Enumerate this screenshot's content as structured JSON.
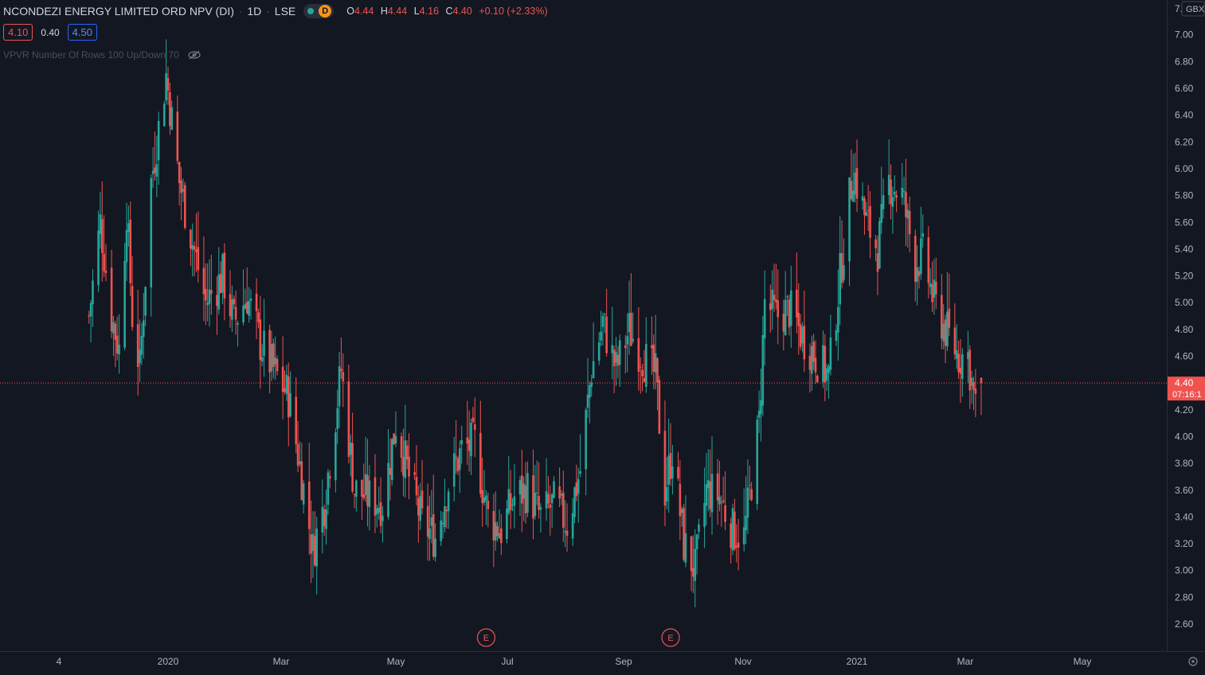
{
  "header": {
    "symbol": "NCONDEZI ENERGY LIMITED ORD NPV (DI)",
    "interval": "1D",
    "exchange": "LSE",
    "badge": "D",
    "ohlc": {
      "o_label": "O",
      "o": "4.44",
      "h_label": "H",
      "h": "4.44",
      "l_label": "L",
      "l": "4.16",
      "c_label": "C",
      "c": "4.40",
      "change": "+0.10 (+2.33%)"
    },
    "bid": "4.10",
    "spread": "0.40",
    "ask": "4.50",
    "indicator": "VPVR Number Of Rows 100 Up/Down 70"
  },
  "price_axis": {
    "currency": "GBX",
    "top_label": "7.",
    "ticks": [
      "7.00",
      "6.80",
      "6.60",
      "6.40",
      "6.20",
      "6.00",
      "5.80",
      "5.60",
      "5.40",
      "5.20",
      "5.00",
      "4.80",
      "4.60",
      "4.40",
      "4.20",
      "4.00",
      "3.80",
      "3.60",
      "3.40",
      "3.20",
      "3.00",
      "2.80",
      "2.60"
    ],
    "last_price_label": "4.40",
    "countdown": "07:16:1"
  },
  "time_axis": {
    "labels": [
      "4",
      "2020",
      "Mar",
      "May",
      "Jul",
      "Sep",
      "Nov",
      "2021",
      "Mar",
      "May"
    ]
  },
  "events": [
    {
      "label": "E",
      "date": "2020-06-18"
    },
    {
      "label": "E",
      "date": "2020-09-24"
    }
  ],
  "colors": {
    "background": "#131722",
    "up": "#26a69a",
    "down": "#ef5350",
    "axis_text": "#b2b5be",
    "last_price": "#ef5350"
  },
  "chart_data": {
    "type": "candlestick",
    "symbol": "NCONDEZI ENERGY LIMITED ORD NPV (DI)",
    "interval": "1D",
    "currency": "GBX",
    "y_range": [
      2.52,
      7.08
    ],
    "last_price": 4.4,
    "series": [
      {
        "date": "2019-11-20",
        "price": 4.9
      },
      {
        "date": "2019-11-26",
        "price": 5.6
      },
      {
        "date": "2019-12-02",
        "price": 4.9
      },
      {
        "date": "2019-12-06",
        "price": 4.65
      },
      {
        "date": "2019-12-10",
        "price": 5.7
      },
      {
        "date": "2019-12-13",
        "price": 4.9
      },
      {
        "date": "2019-12-17",
        "price": 4.5
      },
      {
        "date": "2019-12-23",
        "price": 5.9
      },
      {
        "date": "2019-12-31",
        "price": 6.7
      },
      {
        "date": "2020-01-07",
        "price": 5.9
      },
      {
        "date": "2020-01-14",
        "price": 5.45
      },
      {
        "date": "2020-01-21",
        "price": 5.0
      },
      {
        "date": "2020-01-30",
        "price": 5.2
      },
      {
        "date": "2020-02-05",
        "price": 4.85
      },
      {
        "date": "2020-02-12",
        "price": 5.05
      },
      {
        "date": "2020-02-19",
        "price": 4.7
      },
      {
        "date": "2020-02-26",
        "price": 4.5
      },
      {
        "date": "2020-03-05",
        "price": 4.3
      },
      {
        "date": "2020-03-12",
        "price": 3.7
      },
      {
        "date": "2020-03-18",
        "price": 3.15
      },
      {
        "date": "2020-03-24",
        "price": 3.5
      },
      {
        "date": "2020-04-02",
        "price": 4.5
      },
      {
        "date": "2020-04-09",
        "price": 3.6
      },
      {
        "date": "2020-04-16",
        "price": 3.55
      },
      {
        "date": "2020-04-24",
        "price": 3.5
      },
      {
        "date": "2020-05-01",
        "price": 4.1
      },
      {
        "date": "2020-05-08",
        "price": 3.7
      },
      {
        "date": "2020-05-15",
        "price": 3.35
      },
      {
        "date": "2020-05-22",
        "price": 3.25
      },
      {
        "date": "2020-05-29",
        "price": 3.65
      },
      {
        "date": "2020-06-05",
        "price": 3.9
      },
      {
        "date": "2020-06-12",
        "price": 3.95
      },
      {
        "date": "2020-06-19",
        "price": 3.4
      },
      {
        "date": "2020-06-26",
        "price": 3.3
      },
      {
        "date": "2020-07-03",
        "price": 3.55
      },
      {
        "date": "2020-07-10",
        "price": 3.6
      },
      {
        "date": "2020-07-17",
        "price": 3.4
      },
      {
        "date": "2020-07-24",
        "price": 3.5
      },
      {
        "date": "2020-07-31",
        "price": 3.35
      },
      {
        "date": "2020-08-07",
        "price": 3.75
      },
      {
        "date": "2020-08-13",
        "price": 4.5
      },
      {
        "date": "2020-08-19",
        "price": 4.85
      },
      {
        "date": "2020-08-26",
        "price": 4.5
      },
      {
        "date": "2020-09-02",
        "price": 4.8
      },
      {
        "date": "2020-09-09",
        "price": 4.6
      },
      {
        "date": "2020-09-16",
        "price": 4.45
      },
      {
        "date": "2020-09-21",
        "price": 3.6
      },
      {
        "date": "2020-09-25",
        "price": 3.9
      },
      {
        "date": "2020-10-01",
        "price": 3.2
      },
      {
        "date": "2020-10-07",
        "price": 3.0
      },
      {
        "date": "2020-10-13",
        "price": 3.6
      },
      {
        "date": "2020-10-20",
        "price": 3.55
      },
      {
        "date": "2020-10-27",
        "price": 3.3
      },
      {
        "date": "2020-11-02",
        "price": 3.25
      },
      {
        "date": "2020-11-10",
        "price": 4.1
      },
      {
        "date": "2020-11-13",
        "price": 5.0
      },
      {
        "date": "2020-11-19",
        "price": 4.9
      },
      {
        "date": "2020-11-26",
        "price": 4.95
      },
      {
        "date": "2020-12-03",
        "price": 4.75
      },
      {
        "date": "2020-12-10",
        "price": 4.6
      },
      {
        "date": "2020-12-17",
        "price": 4.45
      },
      {
        "date": "2020-12-23",
        "price": 5.2
      },
      {
        "date": "2020-12-30",
        "price": 6.0
      },
      {
        "date": "2021-01-06",
        "price": 5.6
      },
      {
        "date": "2021-01-12",
        "price": 5.4
      },
      {
        "date": "2021-01-18",
        "price": 5.9
      },
      {
        "date": "2021-01-25",
        "price": 5.8
      },
      {
        "date": "2021-02-01",
        "price": 5.3
      },
      {
        "date": "2021-02-05",
        "price": 5.35
      },
      {
        "date": "2021-02-11",
        "price": 5.0
      },
      {
        "date": "2021-02-17",
        "price": 4.8
      },
      {
        "date": "2021-02-24",
        "price": 4.6
      },
      {
        "date": "2021-03-01",
        "price": 4.6
      },
      {
        "date": "2021-03-05",
        "price": 4.2
      },
      {
        "date": "2021-03-08",
        "price": 4.4
      }
    ]
  }
}
